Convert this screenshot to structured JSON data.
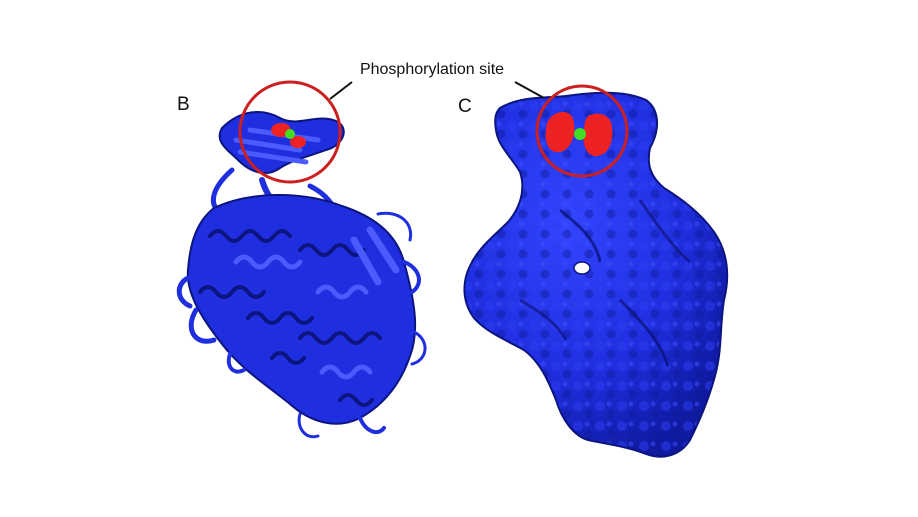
{
  "figure": {
    "callout_label": "Phosphorylation site",
    "panels": [
      {
        "label": "B",
        "representation": "ribbon-cartoon"
      },
      {
        "label": "C",
        "representation": "molecular-surface"
      }
    ],
    "colors": {
      "protein": "#1f2fe0",
      "protein_dark": "#0c1480",
      "site": "#ee2222",
      "ligand": "#44dd22",
      "circle": "#cc1f1f",
      "leader_line": "#111111"
    }
  }
}
